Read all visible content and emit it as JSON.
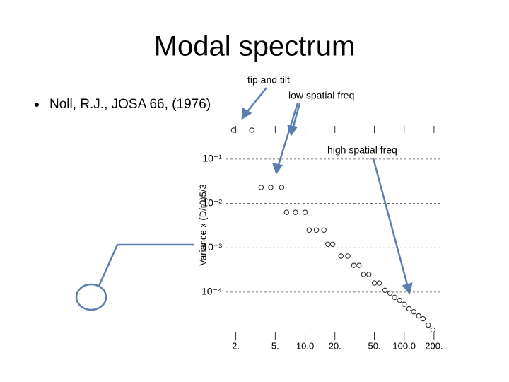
{
  "slide": {
    "title": "Modal spectrum",
    "bullet": "Noll, R.J.,  JOSA 66, (1976)",
    "annotations": [
      "tip and tilt",
      "low spatial freq",
      "high spatial freq"
    ]
  },
  "chart_data": {
    "type": "scatter",
    "ylabel": "Variance x (D/r0)5/3",
    "xscale": "log",
    "yscale": "log",
    "xlim": [
      1.6,
      240
    ],
    "ylim": [
      8.5e-06,
      0.56
    ],
    "xticks": [
      {
        "value": 2,
        "label": "2."
      },
      {
        "value": 5,
        "label": "5."
      },
      {
        "value": 10,
        "label": "10.0"
      },
      {
        "value": 20,
        "label": "20."
      },
      {
        "value": 50,
        "label": "50."
      },
      {
        "value": 100,
        "label": "100.0"
      },
      {
        "value": 200,
        "label": "200."
      }
    ],
    "yticks": [
      {
        "value": 0.1,
        "label": "10⁻¹"
      },
      {
        "value": 0.01,
        "label": "10⁻²"
      },
      {
        "value": 0.001,
        "label": "10⁻³"
      },
      {
        "value": 0.0001,
        "label": "10⁻⁴"
      }
    ],
    "grid": true,
    "color": "#222222",
    "x": [
      1.9,
      2.9,
      3.6,
      4.5,
      5.8,
      6.5,
      8,
      10,
      11,
      13,
      15.5,
      17,
      19,
      23,
      27,
      31,
      35,
      39,
      44,
      50,
      56,
      64,
      72,
      80,
      90,
      100,
      112,
      125,
      140,
      155,
      175,
      195
    ],
    "values": [
      0.45,
      0.45,
      0.023,
      0.023,
      0.023,
      0.0063,
      0.0063,
      0.0063,
      0.0025,
      0.0025,
      0.0025,
      0.0012,
      0.0012,
      0.00065,
      0.00065,
      0.0004,
      0.0004,
      0.00025,
      0.00025,
      0.00016,
      0.00016,
      0.00011,
      9.5e-05,
      7.6e-05,
      6.5e-05,
      5.3e-05,
      4.2e-05,
      3.6e-05,
      2.9e-05,
      2.5e-05,
      1.8e-05,
      1.4e-05
    ]
  }
}
